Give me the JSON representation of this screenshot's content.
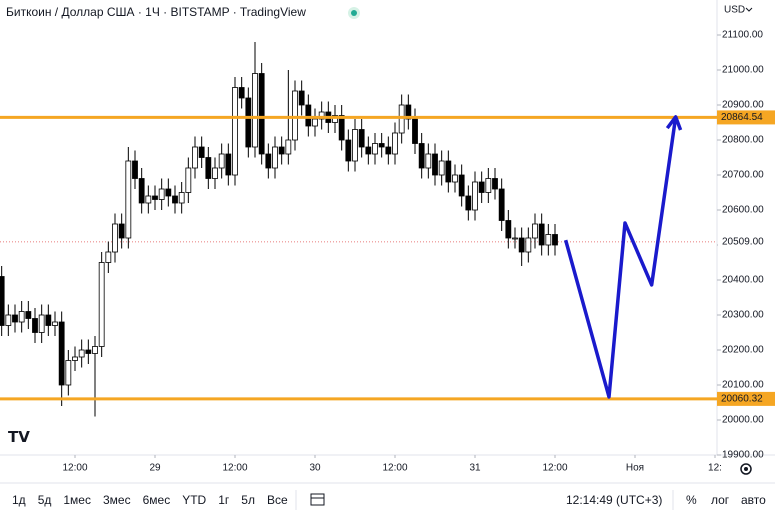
{
  "header": {
    "title": "Биткоин / Доллар США · 1Ч · BITSTAMP · TradingView",
    "currency": "USD"
  },
  "chart_data": {
    "type": "candlestick",
    "x": [
      1,
      2,
      3,
      4,
      5,
      6,
      7,
      8,
      9,
      10,
      11,
      12,
      13,
      14,
      15,
      16,
      17,
      18,
      19,
      20,
      21,
      22,
      23,
      24,
      25,
      26,
      27,
      28,
      29,
      30,
      31,
      32,
      33,
      34,
      35,
      36,
      37,
      38,
      39,
      40,
      41,
      42,
      43,
      44,
      45,
      46,
      47,
      48,
      49,
      50,
      51,
      52,
      53,
      54,
      55,
      56,
      57,
      58,
      59,
      60,
      61,
      62,
      63,
      64,
      65,
      66,
      67,
      68,
      69,
      70,
      71,
      72,
      73,
      74,
      75,
      76,
      77,
      78,
      79,
      80,
      81,
      82,
      83,
      84
    ],
    "open": [
      20410,
      20270,
      20300,
      20280,
      20310,
      20290,
      20250,
      20300,
      20270,
      20280,
      20100,
      20170,
      20180,
      20200,
      20190,
      20210,
      20450,
      20480,
      20560,
      20520,
      20740,
      20690,
      20620,
      20640,
      20630,
      20660,
      20640,
      20620,
      20650,
      20720,
      20780,
      20750,
      20690,
      20720,
      20760,
      20700,
      20950,
      20920,
      20780,
      20990,
      20760,
      20720,
      20780,
      20760,
      20800,
      20940,
      20900,
      20840,
      20860,
      20880,
      20850,
      20870,
      20800,
      20740,
      20830,
      20780,
      20760,
      20790,
      20780,
      20760,
      20820,
      20900,
      20860,
      20790,
      20720,
      20760,
      20700,
      20740,
      20680,
      20700,
      20640,
      20600,
      20680,
      20650,
      20690,
      20660,
      20570,
      20520,
      20520,
      20480,
      20520,
      20560,
      20500,
      20530
    ],
    "high": [
      20440,
      20330,
      20330,
      20340,
      20340,
      20320,
      20330,
      20330,
      20310,
      20310,
      20200,
      20210,
      20230,
      20230,
      20240,
      20480,
      20510,
      20590,
      20590,
      20780,
      20770,
      20720,
      20670,
      20670,
      20690,
      20690,
      20670,
      20680,
      20750,
      20810,
      20810,
      20780,
      20750,
      20790,
      20790,
      20980,
      20980,
      20950,
      21080,
      21020,
      20790,
      20810,
      20810,
      21000,
      20970,
      20970,
      20930,
      20890,
      20910,
      20910,
      20900,
      20900,
      20830,
      20860,
      20860,
      20810,
      20820,
      20820,
      20810,
      20850,
      20930,
      20930,
      20890,
      20820,
      20790,
      20790,
      20770,
      20770,
      20730,
      20730,
      20670,
      20710,
      20710,
      20720,
      20720,
      20690,
      20600,
      20550,
      20550,
      20550,
      20590,
      20590,
      20560,
      20560
    ],
    "low": [
      20240,
      20240,
      20250,
      20250,
      20260,
      20220,
      20220,
      20240,
      20240,
      20040,
      20070,
      20140,
      20150,
      20160,
      20010,
      20180,
      20420,
      20450,
      20490,
      20490,
      20660,
      20590,
      20590,
      20600,
      20600,
      20610,
      20590,
      20590,
      20620,
      20690,
      20720,
      20660,
      20660,
      20690,
      20670,
      20670,
      20890,
      20750,
      20750,
      20730,
      20690,
      20690,
      20730,
      20730,
      20770,
      20870,
      20810,
      20810,
      20830,
      20820,
      20820,
      20770,
      20710,
      20710,
      20750,
      20730,
      20730,
      20750,
      20730,
      20730,
      20790,
      20830,
      20760,
      20690,
      20690,
      20670,
      20670,
      20650,
      20650,
      20610,
      20570,
      20570,
      20620,
      20620,
      20630,
      20540,
      20490,
      20490,
      20440,
      20450,
      20490,
      20470,
      20470,
      20470
    ],
    "close": [
      20270,
      20300,
      20280,
      20310,
      20290,
      20250,
      20300,
      20270,
      20280,
      20100,
      20170,
      20180,
      20200,
      20190,
      20210,
      20450,
      20480,
      20560,
      20520,
      20740,
      20690,
      20620,
      20640,
      20630,
      20660,
      20640,
      20620,
      20650,
      20720,
      20780,
      20750,
      20690,
      20720,
      20760,
      20700,
      20950,
      20920,
      20780,
      20990,
      20760,
      20720,
      20780,
      20760,
      20800,
      20940,
      20900,
      20840,
      20860,
      20880,
      20850,
      20870,
      20800,
      20740,
      20830,
      20780,
      20760,
      20790,
      20780,
      20760,
      20820,
      20900,
      20860,
      20790,
      20720,
      20760,
      20700,
      20740,
      20680,
      20700,
      20640,
      20600,
      20680,
      20650,
      20690,
      20660,
      20570,
      20520,
      20520,
      20480,
      20520,
      20560,
      20500,
      20530,
      20500
    ],
    "up_color": "#ffffff",
    "down_color": "#000000",
    "wick_color": "#000000",
    "xlim": [
      0.75,
      108.3
    ],
    "ylim": [
      19900,
      21200
    ],
    "xticks": [
      {
        "value": 12,
        "label": "12:00"
      },
      {
        "value": 24,
        "label": "29"
      },
      {
        "value": 36,
        "label": "12:00"
      },
      {
        "value": 48,
        "label": "30"
      },
      {
        "value": 60,
        "label": "12:00"
      },
      {
        "value": 72,
        "label": "31"
      },
      {
        "value": 84,
        "label": "12:00"
      },
      {
        "value": 96,
        "label": "Ноя"
      },
      {
        "value": 108,
        "label": "12:"
      }
    ],
    "yticks": [
      {
        "value": 19900,
        "label": "19900.00"
      },
      {
        "value": 20000,
        "label": "20000.00"
      },
      {
        "value": 20100,
        "label": "20100.00"
      },
      {
        "value": 20200,
        "label": "20200.00"
      },
      {
        "value": 20300,
        "label": "20300.00"
      },
      {
        "value": 20400,
        "label": "20400.00"
      },
      {
        "value": 20500,
        "label": "20500.00"
      },
      {
        "value": 20600,
        "label": "20600.00"
      },
      {
        "value": 20700,
        "label": "20700.00"
      },
      {
        "value": 20800,
        "label": "20800.00"
      },
      {
        "value": 20900,
        "label": "20900.00"
      },
      {
        "value": 21000,
        "label": "21000.00"
      },
      {
        "value": 21100,
        "label": "21100.00"
      }
    ],
    "grid": false,
    "levels": [
      {
        "value": 20864.54,
        "color": "#f5a623"
      },
      {
        "value": 20060.32,
        "color": "#f5a623"
      }
    ],
    "last_price": {
      "value": 20509,
      "label": "20509.00",
      "color": "#e05050"
    },
    "forecast": {
      "x": [
        85.6,
        92.1,
        94.5,
        98.5,
        102.1
      ],
      "y": [
        20514,
        20066,
        20563,
        20386,
        20866
      ],
      "color": "#1a1acc"
    }
  },
  "toolbar": {
    "ranges": [
      "1д",
      "5д",
      "1мес",
      "3мес",
      "6мес",
      "YTD",
      "1г",
      "5л",
      "Все"
    ],
    "time": "12:14:49 (UTC+3)",
    "options": [
      "%",
      "лог",
      "авто"
    ]
  }
}
